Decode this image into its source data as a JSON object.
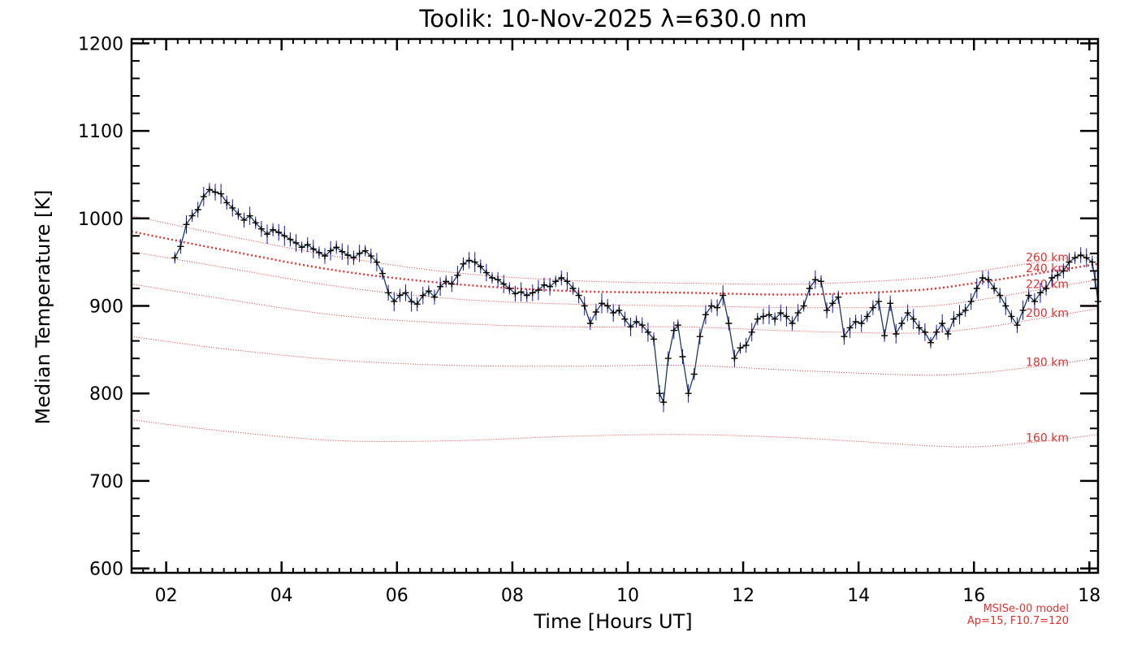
{
  "chart_data": {
    "type": "line",
    "title": "Toolik: 10-Nov-2025 λ=630.0 nm",
    "xlabel": "Time [Hours UT]",
    "ylabel": "Median Temperature [K]",
    "xlim": [
      1.4,
      18.15
    ],
    "ylim": [
      595,
      1205
    ],
    "x_ticks": [
      2,
      4,
      6,
      8,
      10,
      12,
      14,
      16,
      18
    ],
    "x_tick_labels": [
      "02",
      "04",
      "06",
      "08",
      "10",
      "12",
      "14",
      "16",
      "18"
    ],
    "y_ticks": [
      600,
      700,
      800,
      900,
      1000,
      1100,
      1200
    ],
    "y_tick_labels": [
      "600",
      "700",
      "800",
      "900",
      "1000",
      "1100",
      "1200"
    ],
    "series": [
      {
        "name": "Median Temperature",
        "color": "#000000",
        "errorbar_color": "#1010cc",
        "error": 9,
        "points": [
          [
            2.15,
            955
          ],
          [
            2.25,
            968
          ],
          [
            2.35,
            993
          ],
          [
            2.45,
            1003
          ],
          [
            2.55,
            1010
          ],
          [
            2.65,
            1025
          ],
          [
            2.75,
            1033
          ],
          [
            2.85,
            1030
          ],
          [
            2.95,
            1028
          ],
          [
            3.05,
            1018
          ],
          [
            3.15,
            1012
          ],
          [
            3.25,
            1005
          ],
          [
            3.35,
            998
          ],
          [
            3.45,
            1003
          ],
          [
            3.55,
            995
          ],
          [
            3.65,
            988
          ],
          [
            3.75,
            982
          ],
          [
            3.85,
            987
          ],
          [
            3.95,
            984
          ],
          [
            4.05,
            980
          ],
          [
            4.15,
            976
          ],
          [
            4.25,
            972
          ],
          [
            4.35,
            967
          ],
          [
            4.45,
            970
          ],
          [
            4.55,
            965
          ],
          [
            4.65,
            961
          ],
          [
            4.75,
            957
          ],
          [
            4.85,
            963
          ],
          [
            4.95,
            967
          ],
          [
            5.05,
            962
          ],
          [
            5.15,
            958
          ],
          [
            5.25,
            955
          ],
          [
            5.35,
            960
          ],
          [
            5.45,
            963
          ],
          [
            5.55,
            957
          ],
          [
            5.65,
            950
          ],
          [
            5.75,
            937
          ],
          [
            5.85,
            915
          ],
          [
            5.95,
            905
          ],
          [
            6.05,
            912
          ],
          [
            6.15,
            915
          ],
          [
            6.25,
            905
          ],
          [
            6.35,
            902
          ],
          [
            6.45,
            912
          ],
          [
            6.55,
            917
          ],
          [
            6.65,
            910
          ],
          [
            6.75,
            922
          ],
          [
            6.85,
            928
          ],
          [
            6.95,
            925
          ],
          [
            7.05,
            935
          ],
          [
            7.15,
            948
          ],
          [
            7.25,
            952
          ],
          [
            7.35,
            950
          ],
          [
            7.45,
            945
          ],
          [
            7.55,
            938
          ],
          [
            7.65,
            932
          ],
          [
            7.75,
            930
          ],
          [
            7.85,
            925
          ],
          [
            7.95,
            920
          ],
          [
            8.05,
            914
          ],
          [
            8.15,
            916
          ],
          [
            8.25,
            912
          ],
          [
            8.35,
            915
          ],
          [
            8.45,
            918
          ],
          [
            8.55,
            924
          ],
          [
            8.65,
            922
          ],
          [
            8.75,
            928
          ],
          [
            8.85,
            932
          ],
          [
            8.95,
            928
          ],
          [
            9.05,
            920
          ],
          [
            9.15,
            912
          ],
          [
            9.25,
            900
          ],
          [
            9.35,
            880
          ],
          [
            9.45,
            893
          ],
          [
            9.55,
            903
          ],
          [
            9.65,
            900
          ],
          [
            9.75,
            892
          ],
          [
            9.85,
            895
          ],
          [
            9.95,
            885
          ],
          [
            10.05,
            876
          ],
          [
            10.15,
            882
          ],
          [
            10.25,
            878
          ],
          [
            10.35,
            870
          ],
          [
            10.45,
            862
          ],
          [
            10.55,
            800
          ],
          [
            10.62,
            790
          ],
          [
            10.7,
            840
          ],
          [
            10.8,
            872
          ],
          [
            10.87,
            878
          ],
          [
            10.95,
            842
          ],
          [
            11.05,
            800
          ],
          [
            11.15,
            822
          ],
          [
            11.25,
            865
          ],
          [
            11.35,
            890
          ],
          [
            11.45,
            900
          ],
          [
            11.55,
            898
          ],
          [
            11.65,
            912
          ],
          [
            11.75,
            880
          ],
          [
            11.85,
            840
          ],
          [
            11.95,
            852
          ],
          [
            12.05,
            855
          ],
          [
            12.15,
            870
          ],
          [
            12.25,
            885
          ],
          [
            12.35,
            888
          ],
          [
            12.45,
            890
          ],
          [
            12.55,
            885
          ],
          [
            12.65,
            892
          ],
          [
            12.75,
            888
          ],
          [
            12.85,
            880
          ],
          [
            12.95,
            892
          ],
          [
            13.05,
            900
          ],
          [
            13.15,
            920
          ],
          [
            13.25,
            930
          ],
          [
            13.35,
            928
          ],
          [
            13.45,
            895
          ],
          [
            13.55,
            903
          ],
          [
            13.65,
            910
          ],
          [
            13.75,
            865
          ],
          [
            13.85,
            875
          ],
          [
            13.95,
            882
          ],
          [
            14.05,
            880
          ],
          [
            14.15,
            888
          ],
          [
            14.25,
            898
          ],
          [
            14.35,
            905
          ],
          [
            14.45,
            866
          ],
          [
            14.55,
            903
          ],
          [
            14.65,
            868
          ],
          [
            14.75,
            880
          ],
          [
            14.85,
            892
          ],
          [
            14.95,
            885
          ],
          [
            15.05,
            875
          ],
          [
            15.15,
            870
          ],
          [
            15.25,
            858
          ],
          [
            15.35,
            870
          ],
          [
            15.45,
            880
          ],
          [
            15.55,
            868
          ],
          [
            15.65,
            885
          ],
          [
            15.75,
            890
          ],
          [
            15.85,
            895
          ],
          [
            15.95,
            905
          ],
          [
            16.05,
            920
          ],
          [
            16.15,
            932
          ],
          [
            16.25,
            930
          ],
          [
            16.35,
            920
          ],
          [
            16.45,
            912
          ],
          [
            16.55,
            900
          ],
          [
            16.65,
            888
          ],
          [
            16.75,
            878
          ],
          [
            16.85,
            895
          ],
          [
            16.95,
            912
          ],
          [
            17.05,
            905
          ],
          [
            17.15,
            915
          ],
          [
            17.25,
            920
          ],
          [
            17.35,
            932
          ],
          [
            17.45,
            935
          ],
          [
            17.55,
            940
          ],
          [
            17.65,
            950
          ],
          [
            17.75,
            955
          ],
          [
            17.85,
            958
          ],
          [
            17.95,
            955
          ],
          [
            18.05,
            950
          ],
          [
            18.1,
            930
          ],
          [
            18.15,
            905
          ]
        ]
      }
    ],
    "model_curves": {
      "color": "#e03030",
      "curves": [
        {
          "label": "160 km",
          "points": [
            [
              1.4,
              770
            ],
            [
              3,
              757
            ],
            [
              5,
              746
            ],
            [
              7,
              746
            ],
            [
              9,
              751
            ],
            [
              11,
              753
            ],
            [
              13,
              749
            ],
            [
              15,
              741
            ],
            [
              16,
              739
            ],
            [
              17,
              744
            ],
            [
              18.15,
              753
            ]
          ]
        },
        {
          "label": "180 km",
          "points": [
            [
              1.4,
              865
            ],
            [
              3,
              851
            ],
            [
              5,
              838
            ],
            [
              7,
              832
            ],
            [
              9,
              831
            ],
            [
              11,
              832
            ],
            [
              13,
              826
            ],
            [
              15,
              821
            ],
            [
              16,
              823
            ],
            [
              17,
              830
            ],
            [
              18.15,
              840
            ]
          ]
        },
        {
          "label": "200 km",
          "points": [
            [
              1.4,
              925
            ],
            [
              3,
              908
            ],
            [
              5,
              889
            ],
            [
              7,
              880
            ],
            [
              9,
              876
            ],
            [
              11,
              876
            ],
            [
              13,
              871
            ],
            [
              15,
              869
            ],
            [
              16,
              874
            ],
            [
              17,
              884
            ],
            [
              18.15,
              897
            ]
          ]
        },
        {
          "label": "220 km",
          "points": [
            [
              1.4,
              962
            ],
            [
              3,
              944
            ],
            [
              5,
              922
            ],
            [
              7,
              908
            ],
            [
              9,
              902
            ],
            [
              11,
              900
            ],
            [
              13,
              898
            ],
            [
              15,
              899
            ],
            [
              16,
              906
            ],
            [
              17,
              917
            ],
            [
              18.15,
              930
            ]
          ]
        },
        {
          "label": "240 km",
          "points": [
            [
              1.4,
              985
            ],
            [
              3,
              964
            ],
            [
              5,
              940
            ],
            [
              7,
              925
            ],
            [
              9,
              917
            ],
            [
              11,
              915
            ],
            [
              13,
              913
            ],
            [
              15,
              918
            ],
            [
              16,
              926
            ],
            [
              17,
              936
            ],
            [
              18.15,
              948
            ]
          ]
        },
        {
          "label": "260 km",
          "points": [
            [
              1.4,
              1003
            ],
            [
              3,
              981
            ],
            [
              5,
              956
            ],
            [
              7,
              938
            ],
            [
              9,
              929
            ],
            [
              11,
              926
            ],
            [
              13,
              925
            ],
            [
              15,
              931
            ],
            [
              16,
              939
            ],
            [
              17,
              949
            ],
            [
              18.15,
              960
            ]
          ]
        }
      ]
    },
    "annotations": [
      "MSISe-00 model",
      "Ap=15, F10.7=120"
    ]
  }
}
